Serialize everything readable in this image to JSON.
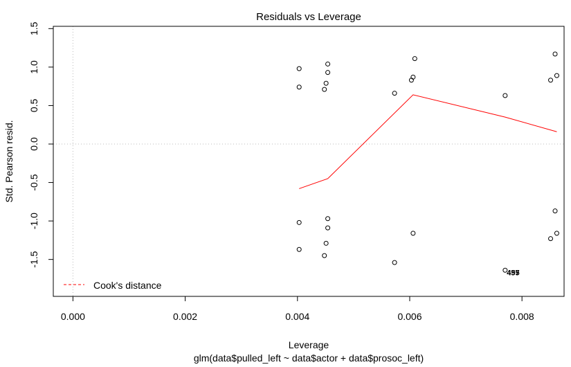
{
  "chart_data": {
    "type": "scatter",
    "title": "Residuals vs Leverage",
    "xlabel": "Leverage",
    "subtitle": "glm(data$pulled_left ~ data$actor + data$prosoc_left)",
    "ylabel": "Std. Pearson resid.",
    "xlim": [
      -0.00035,
      0.00875
    ],
    "ylim": [
      -1.98,
      1.53
    ],
    "x_ticks": [
      0.0,
      0.002,
      0.004,
      0.006,
      0.008
    ],
    "x_tick_labels": [
      "0.000",
      "0.002",
      "0.004",
      "0.006",
      "0.008"
    ],
    "y_ticks": [
      -1.5,
      -1.0,
      -0.5,
      0.0,
      0.5,
      1.0,
      1.5
    ],
    "y_tick_labels": [
      "-1.5",
      "-1.0",
      "-0.5",
      "0.0",
      "0.5",
      "1.0",
      "1.5"
    ],
    "reference_lines": {
      "h": 0,
      "v": 0,
      "style": "dotted",
      "color": "#bbbbbb"
    },
    "points": [
      {
        "x": 0.00403,
        "y": 0.98
      },
      {
        "x": 0.00403,
        "y": 0.74
      },
      {
        "x": 0.00403,
        "y": -1.02
      },
      {
        "x": 0.00403,
        "y": -1.37
      },
      {
        "x": 0.00448,
        "y": 0.71
      },
      {
        "x": 0.00451,
        "y": 0.79
      },
      {
        "x": 0.00454,
        "y": 0.93
      },
      {
        "x": 0.00454,
        "y": 1.04
      },
      {
        "x": 0.00454,
        "y": -0.97
      },
      {
        "x": 0.00454,
        "y": -1.09
      },
      {
        "x": 0.00451,
        "y": -1.29
      },
      {
        "x": 0.00448,
        "y": -1.45
      },
      {
        "x": 0.00573,
        "y": 0.66
      },
      {
        "x": 0.00573,
        "y": -1.54
      },
      {
        "x": 0.00603,
        "y": 0.83
      },
      {
        "x": 0.00606,
        "y": 0.87
      },
      {
        "x": 0.00609,
        "y": 1.11
      },
      {
        "x": 0.00606,
        "y": -1.16
      },
      {
        "x": 0.0077,
        "y": 0.63
      },
      {
        "x": 0.0077,
        "y": -1.64
      },
      {
        "x": 0.00851,
        "y": 0.83
      },
      {
        "x": 0.00859,
        "y": 1.17
      },
      {
        "x": 0.00862,
        "y": 0.89
      },
      {
        "x": 0.00859,
        "y": -0.87
      },
      {
        "x": 0.00862,
        "y": -1.16
      },
      {
        "x": 0.00851,
        "y": -1.23
      }
    ],
    "point_labels": [
      {
        "x": 0.00773,
        "y": -1.67,
        "text": "455"
      },
      {
        "x": 0.00773,
        "y": -1.67,
        "text": "497"
      }
    ],
    "series": [
      {
        "color": "#ff0000",
        "x": [
          0.00403,
          0.00454,
          0.00606,
          0.0077,
          0.00862
        ],
        "y": [
          -0.58,
          -0.45,
          0.64,
          0.35,
          0.16
        ]
      }
    ],
    "legend": {
      "position": "bottom-left",
      "entries": [
        {
          "label": "Cook's distance",
          "color": "#ff0000",
          "style": "dashed"
        }
      ]
    }
  }
}
